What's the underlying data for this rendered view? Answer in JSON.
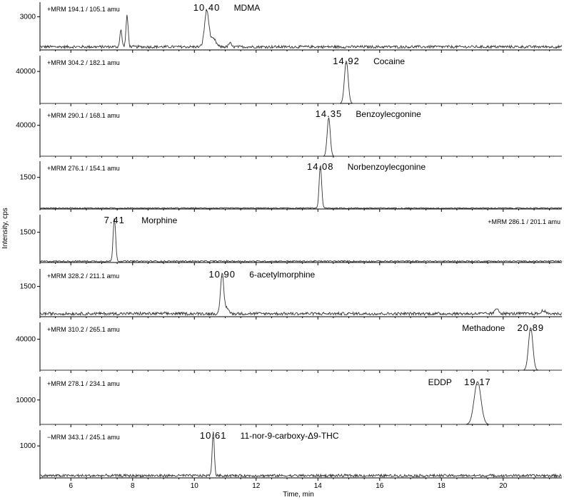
{
  "chart_data": {
    "type": "line",
    "xlabel": "Time, min",
    "ylabel": "Intensity, cps",
    "xlim": [
      5.0,
      21.9
    ],
    "x_ticks": [
      6,
      8,
      10,
      12,
      14,
      16,
      18,
      20
    ],
    "panels": [
      {
        "mrm": "+MRM   194.1 / 105.1  amu",
        "compound": "MDMA",
        "rt_label": "10.40",
        "rt": 10.4,
        "ytick": 3000,
        "ytick_label": "3000",
        "ymax": 4200,
        "peak_height": 3300,
        "peak_width": 0.07,
        "baseline": 280,
        "noise": 120,
        "extra_peaks": [
          {
            "x": 7.62,
            "h": 1500,
            "w": 0.035
          },
          {
            "x": 7.82,
            "h": 2800,
            "w": 0.035
          },
          {
            "x": 10.62,
            "h": 700,
            "w": 0.08
          },
          {
            "x": 11.15,
            "h": 350,
            "w": 0.04
          }
        ]
      },
      {
        "mrm": "+MRM   304.2 / 182.1  amu",
        "compound": "Cocaine",
        "rt_label": "14.92",
        "rt": 14.92,
        "ytick": 40000,
        "ytick_label": "40000",
        "ymax": 58000,
        "peak_height": 53000,
        "peak_width": 0.06,
        "baseline": 0,
        "noise": 0,
        "extra_peaks": []
      },
      {
        "mrm": "+MRM   290.1 / 168.1  amu",
        "compound": "Benzoylecgonine",
        "rt_label": "14.35",
        "rt": 14.35,
        "ytick": 40000,
        "ytick_label": "40000",
        "ymax": 60000,
        "peak_height": 50000,
        "peak_width": 0.05,
        "baseline": 0,
        "noise": 0,
        "extra_peaks": []
      },
      {
        "mrm": "+MRM   276.1 / 154.1  amu",
        "compound": "Norbenzoylecgonine",
        "rt_label": "14.08",
        "rt": 14.08,
        "ytick": 1500,
        "ytick_label": "1500",
        "ymax": 2200,
        "peak_height": 2050,
        "peak_width": 0.04,
        "baseline": 40,
        "noise": 25,
        "extra_peaks": []
      },
      {
        "mrm": "+MRM   286.1 / 201.1  amu",
        "mrm_align": "right",
        "compound": "Morphine",
        "rt_label": "7.41",
        "rt": 7.41,
        "ytick": 1500,
        "ytick_label": "1500",
        "ymax": 2300,
        "peak_height": 2150,
        "peak_width": 0.04,
        "baseline": 60,
        "noise": 35,
        "extra_peaks": []
      },
      {
        "mrm": "+MRM   328.2 / 211.1  amu",
        "compound": "6-acetylmorphine",
        "rt_label": "10.90",
        "rt": 10.9,
        "ytick": 1500,
        "ytick_label": "1500",
        "ymax": 2300,
        "peak_height": 2000,
        "peak_width": 0.05,
        "baseline": 150,
        "noise": 70,
        "extra_peaks": [
          {
            "x": 11.05,
            "h": 300,
            "w": 0.06
          },
          {
            "x": 19.8,
            "h": 260,
            "w": 0.06
          },
          {
            "x": 21.3,
            "h": 180,
            "w": 0.05
          }
        ]
      },
      {
        "mrm": "+MRM   310.2 / 265.1  amu",
        "compound": "Methadone",
        "rt_label": "20.89",
        "rt": 20.89,
        "ytick": 40000,
        "ytick_label": "40000",
        "ymax": 60000,
        "peak_height": 55000,
        "peak_width": 0.07,
        "baseline": 0,
        "noise": 0,
        "extra_peaks": []
      },
      {
        "mrm": "+MRM   278.1 / 234.1  amu",
        "compound": "EDDP",
        "rt_label": "19.17",
        "rt": 19.17,
        "ytick": 10000,
        "ytick_label": "10000",
        "ymax": 19000,
        "peak_height": 17500,
        "peak_width": 0.11,
        "baseline": 0,
        "noise": 0,
        "extra_peaks": []
      },
      {
        "mrm": "−MRM   343.1 / 245.1  amu",
        "compound": "11-nor-9-carboxy-Δ9-THC",
        "rt_label": "10.61",
        "rt": 10.61,
        "ytick": 1000,
        "ytick_label": "1000",
        "ymax": 1450,
        "peak_height": 1350,
        "peak_width": 0.035,
        "baseline": 70,
        "noise": 40,
        "extra_peaks": []
      }
    ]
  }
}
